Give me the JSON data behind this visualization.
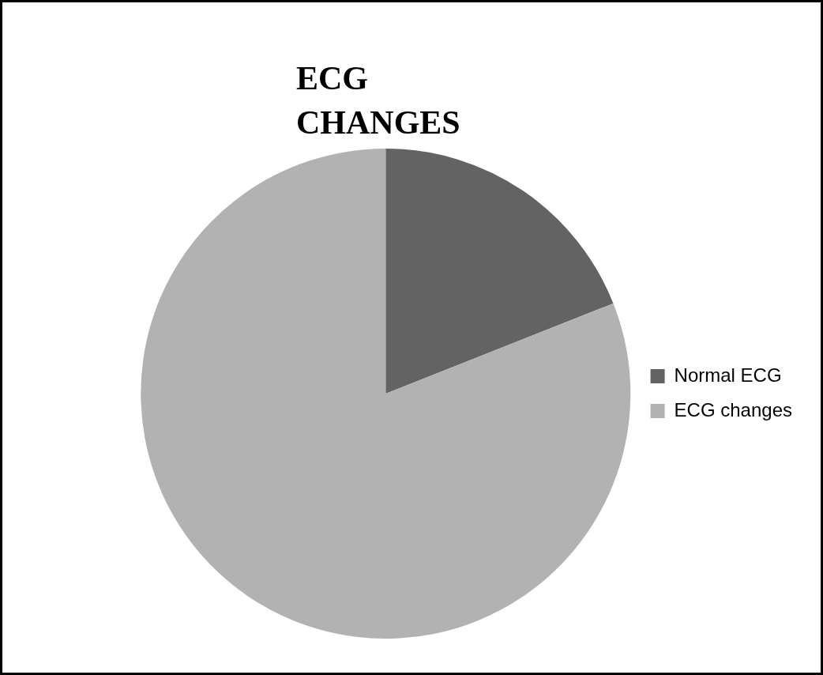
{
  "chart_data": {
    "type": "pie",
    "title": "ECG CHANGES",
    "categories": [
      "Normal ECG",
      "ECG changes"
    ],
    "values": [
      19,
      81
    ],
    "colors": [
      "#636363",
      "#b2b2b2"
    ],
    "legend": "right"
  }
}
